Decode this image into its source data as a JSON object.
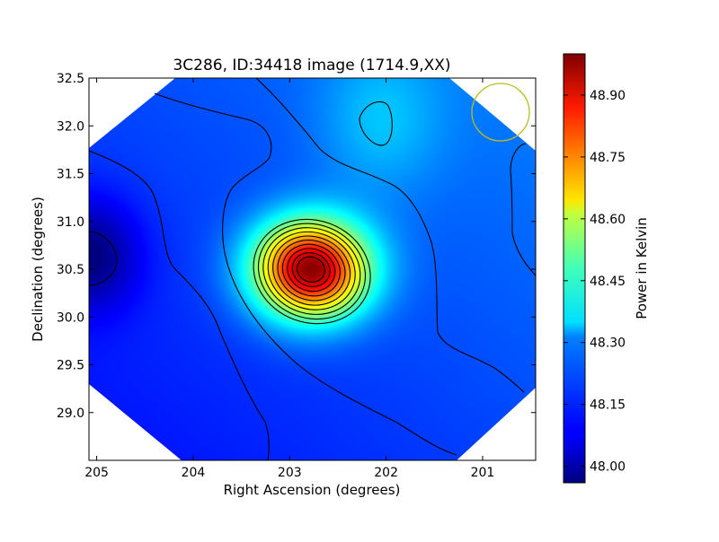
{
  "chart_data": {
    "type": "heatmap",
    "title": "3C286, ID:34418 image (1714.9,XX)",
    "xlabel": "Right Ascension (degrees)",
    "ylabel": "Declination (degrees)",
    "xlim": [
      205.08,
      200.45
    ],
    "ylim": [
      28.5,
      32.5
    ],
    "x_ticks": [
      "205",
      "204",
      "203",
      "202",
      "201"
    ],
    "x_tick_values": [
      205,
      204,
      203,
      202,
      201
    ],
    "y_ticks": [
      "29.0",
      "29.5",
      "30.0",
      "30.5",
      "31.0",
      "31.5",
      "32.0",
      "32.5"
    ],
    "y_tick_values": [
      29.0,
      29.5,
      30.0,
      30.5,
      31.0,
      31.5,
      32.0,
      32.5
    ],
    "colorbar": {
      "label": "Power in Kelvin",
      "range": [
        47.96,
        49.0
      ],
      "ticks": [
        "48.00",
        "48.15",
        "48.30",
        "48.45",
        "48.60",
        "48.75",
        "48.90"
      ],
      "tick_values": [
        48.0,
        48.15,
        48.3,
        48.45,
        48.6,
        48.75,
        48.9
      ],
      "colormap": "jet"
    },
    "peak": {
      "ra": 202.78,
      "dec": 30.5,
      "value": 48.98
    },
    "minimum": {
      "ra": 205.08,
      "dec": 30.65,
      "value": 47.97
    },
    "secondary_peak": {
      "ra": 202.05,
      "dec": 32.05,
      "value": 48.33
    },
    "contour_count_around_peak": 10,
    "beam_marker": {
      "ra": 200.85,
      "dec": 32.15,
      "color": "#bcbc1e"
    },
    "background_level": 48.15
  }
}
